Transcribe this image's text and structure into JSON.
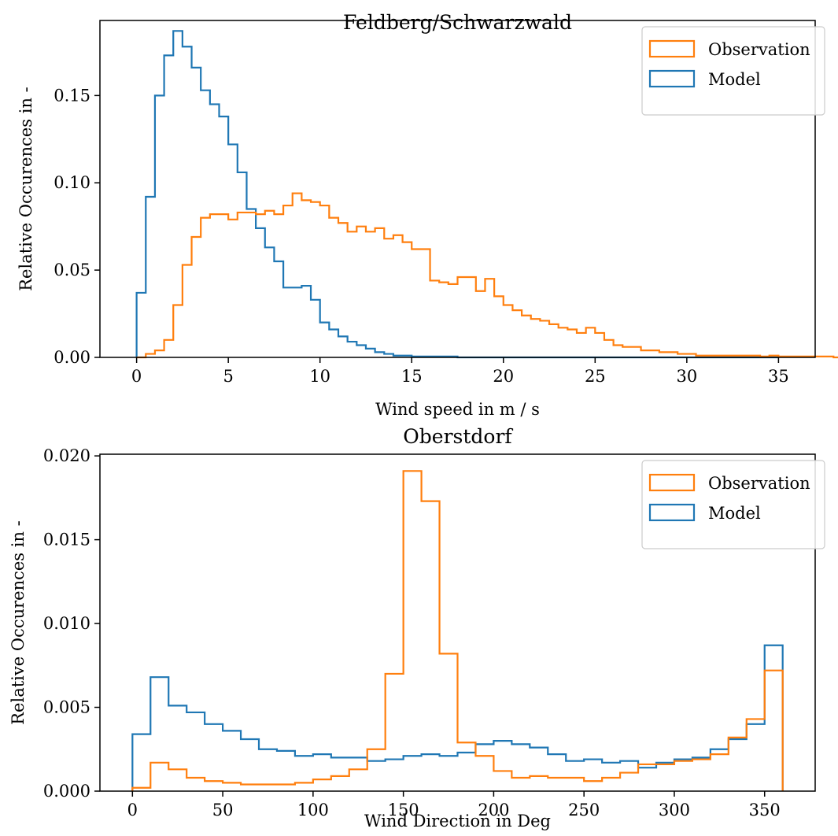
{
  "chart_data": [
    {
      "type": "histogram",
      "title": "Feldberg/Schwarzwald",
      "xlabel": "Wind speed in m / s",
      "ylabel": "Relative Occurences in -",
      "xlim": [
        -2,
        37
      ],
      "ylim": [
        0,
        0.193
      ],
      "xticks": [
        0,
        5,
        10,
        15,
        20,
        25,
        30,
        35
      ],
      "yticks": [
        0.0,
        0.05,
        0.1,
        0.15
      ],
      "ytick_labels": [
        "0.00",
        "0.05",
        "0.10",
        "0.15"
      ],
      "legend": "top-right",
      "x_start": 0,
      "bin_width": 0.5,
      "series": [
        {
          "name": "Observation",
          "color": "#ff7f0e",
          "values": [
            0.0,
            0.002,
            0.004,
            0.01,
            0.03,
            0.053,
            0.069,
            0.08,
            0.082,
            0.082,
            0.079,
            0.083,
            0.083,
            0.082,
            0.084,
            0.082,
            0.087,
            0.094,
            0.09,
            0.089,
            0.087,
            0.08,
            0.077,
            0.072,
            0.075,
            0.072,
            0.074,
            0.068,
            0.07,
            0.066,
            0.062,
            0.062,
            0.044,
            0.043,
            0.042,
            0.046,
            0.046,
            0.038,
            0.045,
            0.035,
            0.03,
            0.027,
            0.024,
            0.022,
            0.021,
            0.019,
            0.017,
            0.016,
            0.014,
            0.017,
            0.014,
            0.01,
            0.007,
            0.006,
            0.006,
            0.004,
            0.004,
            0.003,
            0.003,
            0.002,
            0.002,
            0.001,
            0.001,
            0.001,
            0.001,
            0.001,
            0.001,
            0.001,
            0.0005,
            0.001,
            0.0005,
            0.0005,
            0.0005,
            0.0005,
            0.0005,
            0.0005,
            0.0,
            0.0,
            0.0,
            0.0,
            0.0,
            0.0,
            0.0,
            0.0,
            0.0,
            0.0,
            0.0,
            0.0,
            0.0,
            0.0,
            0.0,
            0.0,
            0.0,
            0.0,
            0.0,
            0.0,
            0.0,
            0.0,
            0.0,
            0.0,
            0.0,
            0.0,
            0.0,
            0.0,
            0.0,
            0.0,
            0.0,
            0.0,
            0.0,
            0.0
          ]
        },
        {
          "name": "Model",
          "color": "#1f77b4",
          "values": [
            0.037,
            0.092,
            0.15,
            0.173,
            0.187,
            0.178,
            0.166,
            0.153,
            0.145,
            0.138,
            0.122,
            0.106,
            0.085,
            0.074,
            0.063,
            0.055,
            0.04,
            0.04,
            0.041,
            0.033,
            0.02,
            0.016,
            0.012,
            0.009,
            0.007,
            0.005,
            0.003,
            0.002,
            0.001,
            0.001,
            0.0005,
            0.0005,
            0.0005,
            0.0005,
            0.0005,
            0.0,
            0.0,
            0.0,
            0.0,
            0.0,
            0.0,
            0.0,
            0.0,
            0.0,
            0.0,
            0.0,
            0.0,
            0.0,
            0.0,
            0.0,
            0.0,
            0.0,
            0.0,
            0.0,
            0.0,
            0.0,
            0.0,
            0.0,
            0.0,
            0.0,
            0.0,
            0.0,
            0.0,
            0.0,
            0.0,
            0.0,
            0.0,
            0.0,
            0.0,
            0.0
          ]
        }
      ]
    },
    {
      "type": "histogram",
      "title": "Oberstdorf",
      "xlabel": "Wind Direction in Deg",
      "ylabel": "Relative Occurences in -",
      "xlim": [
        -18,
        378
      ],
      "ylim": [
        0,
        0.0201
      ],
      "xticks": [
        0,
        50,
        100,
        150,
        200,
        250,
        300,
        350
      ],
      "yticks": [
        0.0,
        0.005,
        0.01,
        0.015,
        0.02
      ],
      "ytick_labels": [
        "0.000",
        "0.005",
        "0.010",
        "0.015",
        "0.020"
      ],
      "legend": "top-right",
      "x_start": 0,
      "bin_width": 10,
      "series": [
        {
          "name": "Observation",
          "color": "#ff7f0e",
          "values": [
            0.0002,
            0.0017,
            0.0013,
            0.0008,
            0.0006,
            0.0005,
            0.0004,
            0.0004,
            0.0004,
            0.0005,
            0.0007,
            0.0009,
            0.0013,
            0.0025,
            0.007,
            0.0191,
            0.0173,
            0.0082,
            0.0029,
            0.0021,
            0.0012,
            0.0008,
            0.0009,
            0.0008,
            0.0008,
            0.0006,
            0.0008,
            0.0011,
            0.0016,
            0.0016,
            0.0018,
            0.0019,
            0.0022,
            0.0032,
            0.0043,
            0.0072
          ]
        },
        {
          "name": "Model",
          "color": "#1f77b4",
          "values": [
            0.0034,
            0.0068,
            0.0051,
            0.0047,
            0.004,
            0.0036,
            0.0031,
            0.0025,
            0.0024,
            0.0021,
            0.0022,
            0.002,
            0.002,
            0.0018,
            0.0019,
            0.0021,
            0.0022,
            0.0021,
            0.0023,
            0.0028,
            0.003,
            0.0028,
            0.0026,
            0.0022,
            0.0018,
            0.0019,
            0.0017,
            0.0018,
            0.0014,
            0.0017,
            0.0019,
            0.002,
            0.0025,
            0.0031,
            0.004,
            0.0087
          ]
        }
      ]
    }
  ]
}
